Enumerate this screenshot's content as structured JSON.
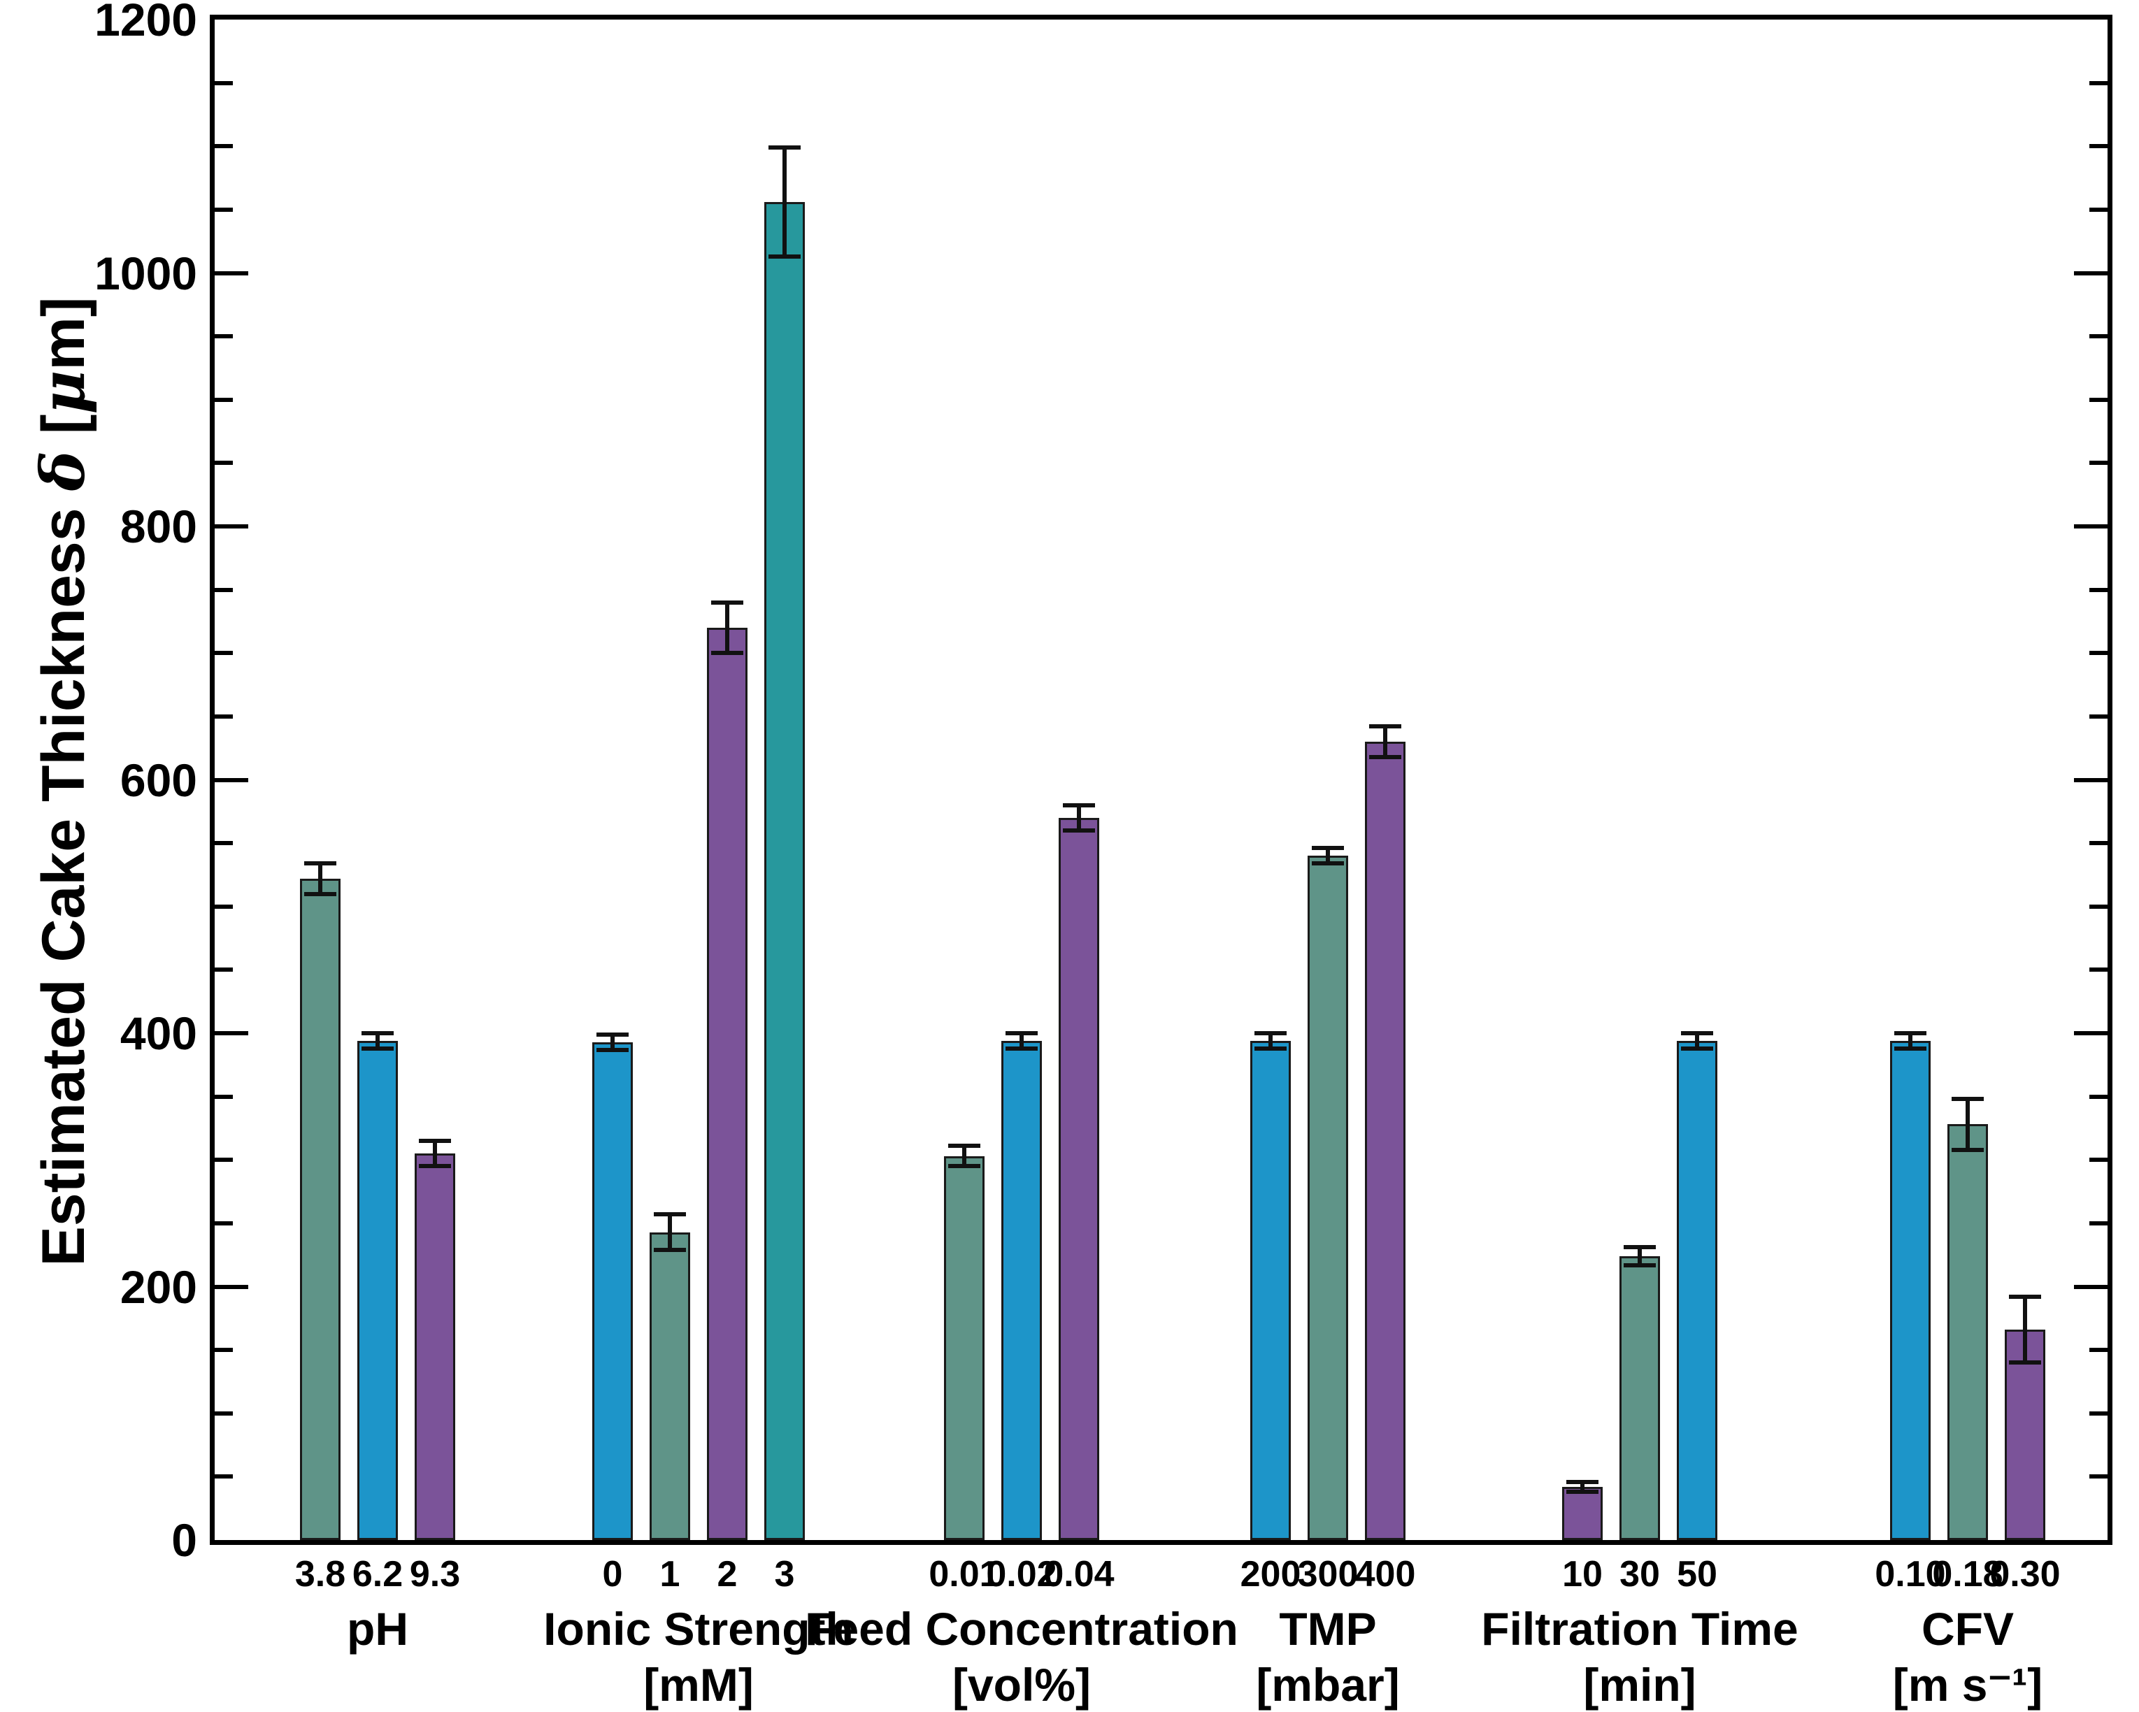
{
  "figure": {
    "background": "#ffffff",
    "y_axis": {
      "label_parts": {
        "prefix": "Estimated Cake Thickness ",
        "delta": "δ",
        "bracket_open": " [",
        "mu": "μ",
        "suffix": "m]"
      },
      "tick_labels": [
        "0",
        "200",
        "400",
        "600",
        "800",
        "1000",
        "1200"
      ]
    }
  },
  "chart_data": {
    "type": "bar",
    "title": "",
    "ylabel": "Estimated Cake Thickness δ [μm]",
    "xlabel": "",
    "ylim": [
      0,
      1200
    ],
    "ytick_step": 200,
    "minor_tick_step": 50,
    "grid": false,
    "legend": "none",
    "error_bars": true,
    "palette": {
      "green": "#5F9488",
      "blue": "#1D95C9",
      "purple": "#7B5399",
      "teal": "#27989D"
    },
    "bar_edge_color": "#1a1a1a",
    "axis_color": "#000000",
    "groups": [
      {
        "name": "pH",
        "unit": "",
        "categories": [
          "3.8",
          "6.2",
          "9.3"
        ],
        "values": [
          522,
          394,
          305
        ],
        "errors": [
          12,
          6,
          10
        ],
        "colors": [
          "green",
          "blue",
          "purple"
        ]
      },
      {
        "name": "Ionic Strength",
        "unit": "[mM]",
        "categories": [
          "0",
          "1",
          "2",
          "3"
        ],
        "values": [
          393,
          243,
          720,
          1056
        ],
        "errors": [
          6,
          14,
          20,
          43
        ],
        "colors": [
          "blue",
          "green",
          "purple",
          "teal"
        ]
      },
      {
        "name": "Feed Concentration",
        "unit": "[vol%]",
        "categories": [
          "0.01",
          "0.02",
          "0.04"
        ],
        "values": [
          303,
          394,
          570
        ],
        "errors": [
          8,
          6,
          10
        ],
        "colors": [
          "green",
          "blue",
          "purple"
        ]
      },
      {
        "name": "TMP",
        "unit": "[mbar]",
        "categories": [
          "200",
          "300",
          "400"
        ],
        "values": [
          394,
          540,
          630
        ],
        "errors": [
          6,
          6,
          12
        ],
        "colors": [
          "blue",
          "green",
          "purple"
        ]
      },
      {
        "name": "Filtration Time",
        "unit": "[min]",
        "categories": [
          "10",
          "30",
          "50"
        ],
        "values": [
          42,
          224,
          394
        ],
        "errors": [
          4,
          7,
          6
        ],
        "colors": [
          "purple",
          "green",
          "blue"
        ]
      },
      {
        "name": "CFV",
        "unit": "[m s⁻¹]",
        "categories": [
          "0.10",
          "0.18",
          "0.30"
        ],
        "values": [
          394,
          328,
          166
        ],
        "errors": [
          6,
          20,
          26
        ],
        "colors": [
          "blue",
          "green",
          "purple"
        ]
      }
    ]
  }
}
